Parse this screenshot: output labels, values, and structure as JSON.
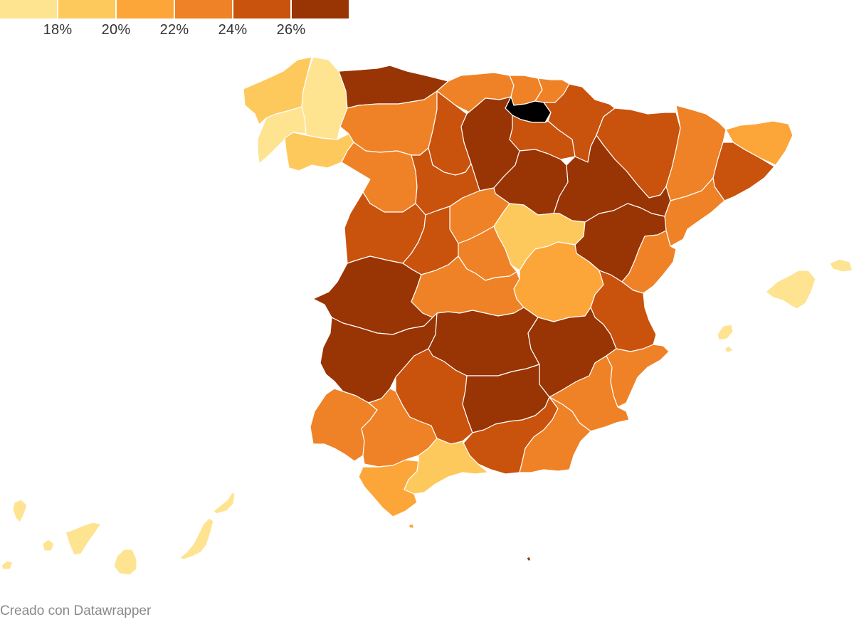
{
  "legend": {
    "colors": [
      "#fee391",
      "#fec95c",
      "#fca63a",
      "#ef8226",
      "#c9520d",
      "#993404"
    ],
    "labels": [
      "18%",
      "20%",
      "22%",
      "24%",
      "26%"
    ]
  },
  "provinces": [
    {
      "name": "A Coruña",
      "bin": 1
    },
    {
      "name": "Lugo",
      "bin": 0
    },
    {
      "name": "Pontevedra",
      "bin": 0
    },
    {
      "name": "Ourense",
      "bin": 1
    },
    {
      "name": "Asturias",
      "bin": 5
    },
    {
      "name": "Cantabria",
      "bin": 3
    },
    {
      "name": "Bizkaia",
      "bin": 3
    },
    {
      "name": "Gipuzkoa",
      "bin": 3
    },
    {
      "name": "Araba/Álava",
      "bin": 3
    },
    {
      "name": "Navarra",
      "bin": 4
    },
    {
      "name": "La Rioja",
      "bin": 4
    },
    {
      "name": "Huesca",
      "bin": 4
    },
    {
      "name": "Lleida",
      "bin": 3
    },
    {
      "name": "Girona",
      "bin": 2
    },
    {
      "name": "Barcelona",
      "bin": 4
    },
    {
      "name": "Tarragona",
      "bin": 3
    },
    {
      "name": "León",
      "bin": 3
    },
    {
      "name": "Palencia",
      "bin": 4
    },
    {
      "name": "Burgos",
      "bin": 5
    },
    {
      "name": "Zamora",
      "bin": 3
    },
    {
      "name": "Valladolid",
      "bin": 4
    },
    {
      "name": "Soria",
      "bin": 5
    },
    {
      "name": "Zaragoza",
      "bin": 5
    },
    {
      "name": "Salamanca",
      "bin": 4
    },
    {
      "name": "Segovia",
      "bin": 3
    },
    {
      "name": "Ávila",
      "bin": 4
    },
    {
      "name": "Guadalajara",
      "bin": 1
    },
    {
      "name": "Madrid",
      "bin": 3
    },
    {
      "name": "Teruel",
      "bin": 5
    },
    {
      "name": "Castellón",
      "bin": 3
    },
    {
      "name": "Cáceres",
      "bin": 5
    },
    {
      "name": "Toledo",
      "bin": 3
    },
    {
      "name": "Cuenca",
      "bin": 2
    },
    {
      "name": "Valencia",
      "bin": 4
    },
    {
      "name": "Badajoz",
      "bin": 5
    },
    {
      "name": "Ciudad Real",
      "bin": 5
    },
    {
      "name": "Albacete",
      "bin": 5
    },
    {
      "name": "Alicante",
      "bin": 3
    },
    {
      "name": "Murcia",
      "bin": 3
    },
    {
      "name": "Huelva",
      "bin": 3
    },
    {
      "name": "Sevilla",
      "bin": 3
    },
    {
      "name": "Córdoba",
      "bin": 4
    },
    {
      "name": "Jaén",
      "bin": 5
    },
    {
      "name": "Granada",
      "bin": 4
    },
    {
      "name": "Almería",
      "bin": 3
    },
    {
      "name": "Cádiz",
      "bin": 2
    },
    {
      "name": "Málaga",
      "bin": 1
    },
    {
      "name": "Illes Balears",
      "bin": 0
    },
    {
      "name": "Santa Cruz de Tenerife",
      "bin": 0
    },
    {
      "name": "Las Palmas",
      "bin": 0
    },
    {
      "name": "Ceuta",
      "bin": 2
    },
    {
      "name": "Melilla",
      "bin": 5
    }
  ],
  "credit": "Creado con Datawrapper"
}
